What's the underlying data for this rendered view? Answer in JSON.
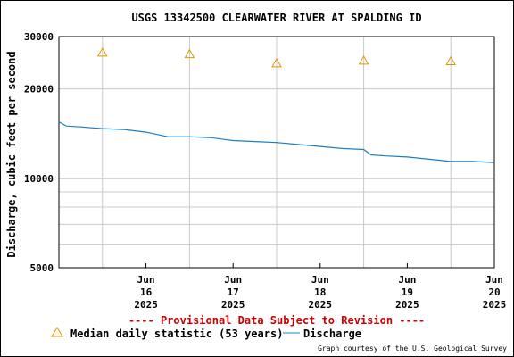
{
  "chart_data": {
    "type": "line",
    "title": "USGS 13342500 CLEARWATER RIVER AT SPALDING ID",
    "ylabel": "Discharge, cubic feet per second",
    "xlabel": "",
    "y_scale": "log",
    "ylim": [
      5000,
      30000
    ],
    "y_ticks": [
      "30000",
      "20000",
      "10000",
      "5000"
    ],
    "xlim": [
      "2025-06-15T12:00",
      "2025-06-20T12:00"
    ],
    "x_ticks": [
      {
        "line1": "Jun",
        "line2": "16",
        "line3": "2025"
      },
      {
        "line1": "Jun",
        "line2": "17",
        "line3": "2025"
      },
      {
        "line1": "Jun",
        "line2": "18",
        "line3": "2025"
      },
      {
        "line1": "Jun",
        "line2": "19",
        "line3": "2025"
      },
      {
        "line1": "Jun",
        "line2": "20",
        "line3": "2025"
      }
    ],
    "grid": true,
    "series": [
      {
        "name": "Discharge",
        "color": "#1a7fc1",
        "points": [
          [
            "2025-06-15T12:00",
            15500
          ],
          [
            "2025-06-15T14:00",
            15000
          ],
          [
            "2025-06-15T18:00",
            14900
          ],
          [
            "2025-06-16T00:00",
            14700
          ],
          [
            "2025-06-16T06:00",
            14600
          ],
          [
            "2025-06-16T12:00",
            14300
          ],
          [
            "2025-06-16T18:00",
            13800
          ],
          [
            "2025-06-17T00:00",
            13800
          ],
          [
            "2025-06-17T06:00",
            13700
          ],
          [
            "2025-06-17T12:00",
            13400
          ],
          [
            "2025-06-17T18:00",
            13300
          ],
          [
            "2025-06-18T00:00",
            13200
          ],
          [
            "2025-06-18T06:00",
            13000
          ],
          [
            "2025-06-18T12:00",
            12800
          ],
          [
            "2025-06-18T18:00",
            12600
          ],
          [
            "2025-06-19T00:00",
            12500
          ],
          [
            "2025-06-19T02:00",
            12000
          ],
          [
            "2025-06-19T06:00",
            11900
          ],
          [
            "2025-06-19T12:00",
            11800
          ],
          [
            "2025-06-19T18:00",
            11600
          ],
          [
            "2025-06-20T00:00",
            11400
          ],
          [
            "2025-06-20T06:00",
            11400
          ],
          [
            "2025-06-20T12:00",
            11300
          ]
        ]
      },
      {
        "name": "Median daily statistic (53 years)",
        "color": "#e69500",
        "marker": "triangle",
        "points": [
          [
            "2025-06-16T00:00",
            26500
          ],
          [
            "2025-06-17T00:00",
            26200
          ],
          [
            "2025-06-18T00:00",
            24400
          ],
          [
            "2025-06-19T00:00",
            24900
          ],
          [
            "2025-06-20T00:00",
            24800
          ]
        ]
      }
    ]
  },
  "footer": {
    "provisional": "---- Provisional Data Subject to Revision ----",
    "legend_median": "Median daily statistic (53 years)",
    "legend_discharge": "Discharge",
    "credit": "Graph courtesy of the U.S. Geological Survey"
  },
  "colors": {
    "provisional": "#cc0000",
    "grid": "#c8c8c8"
  }
}
